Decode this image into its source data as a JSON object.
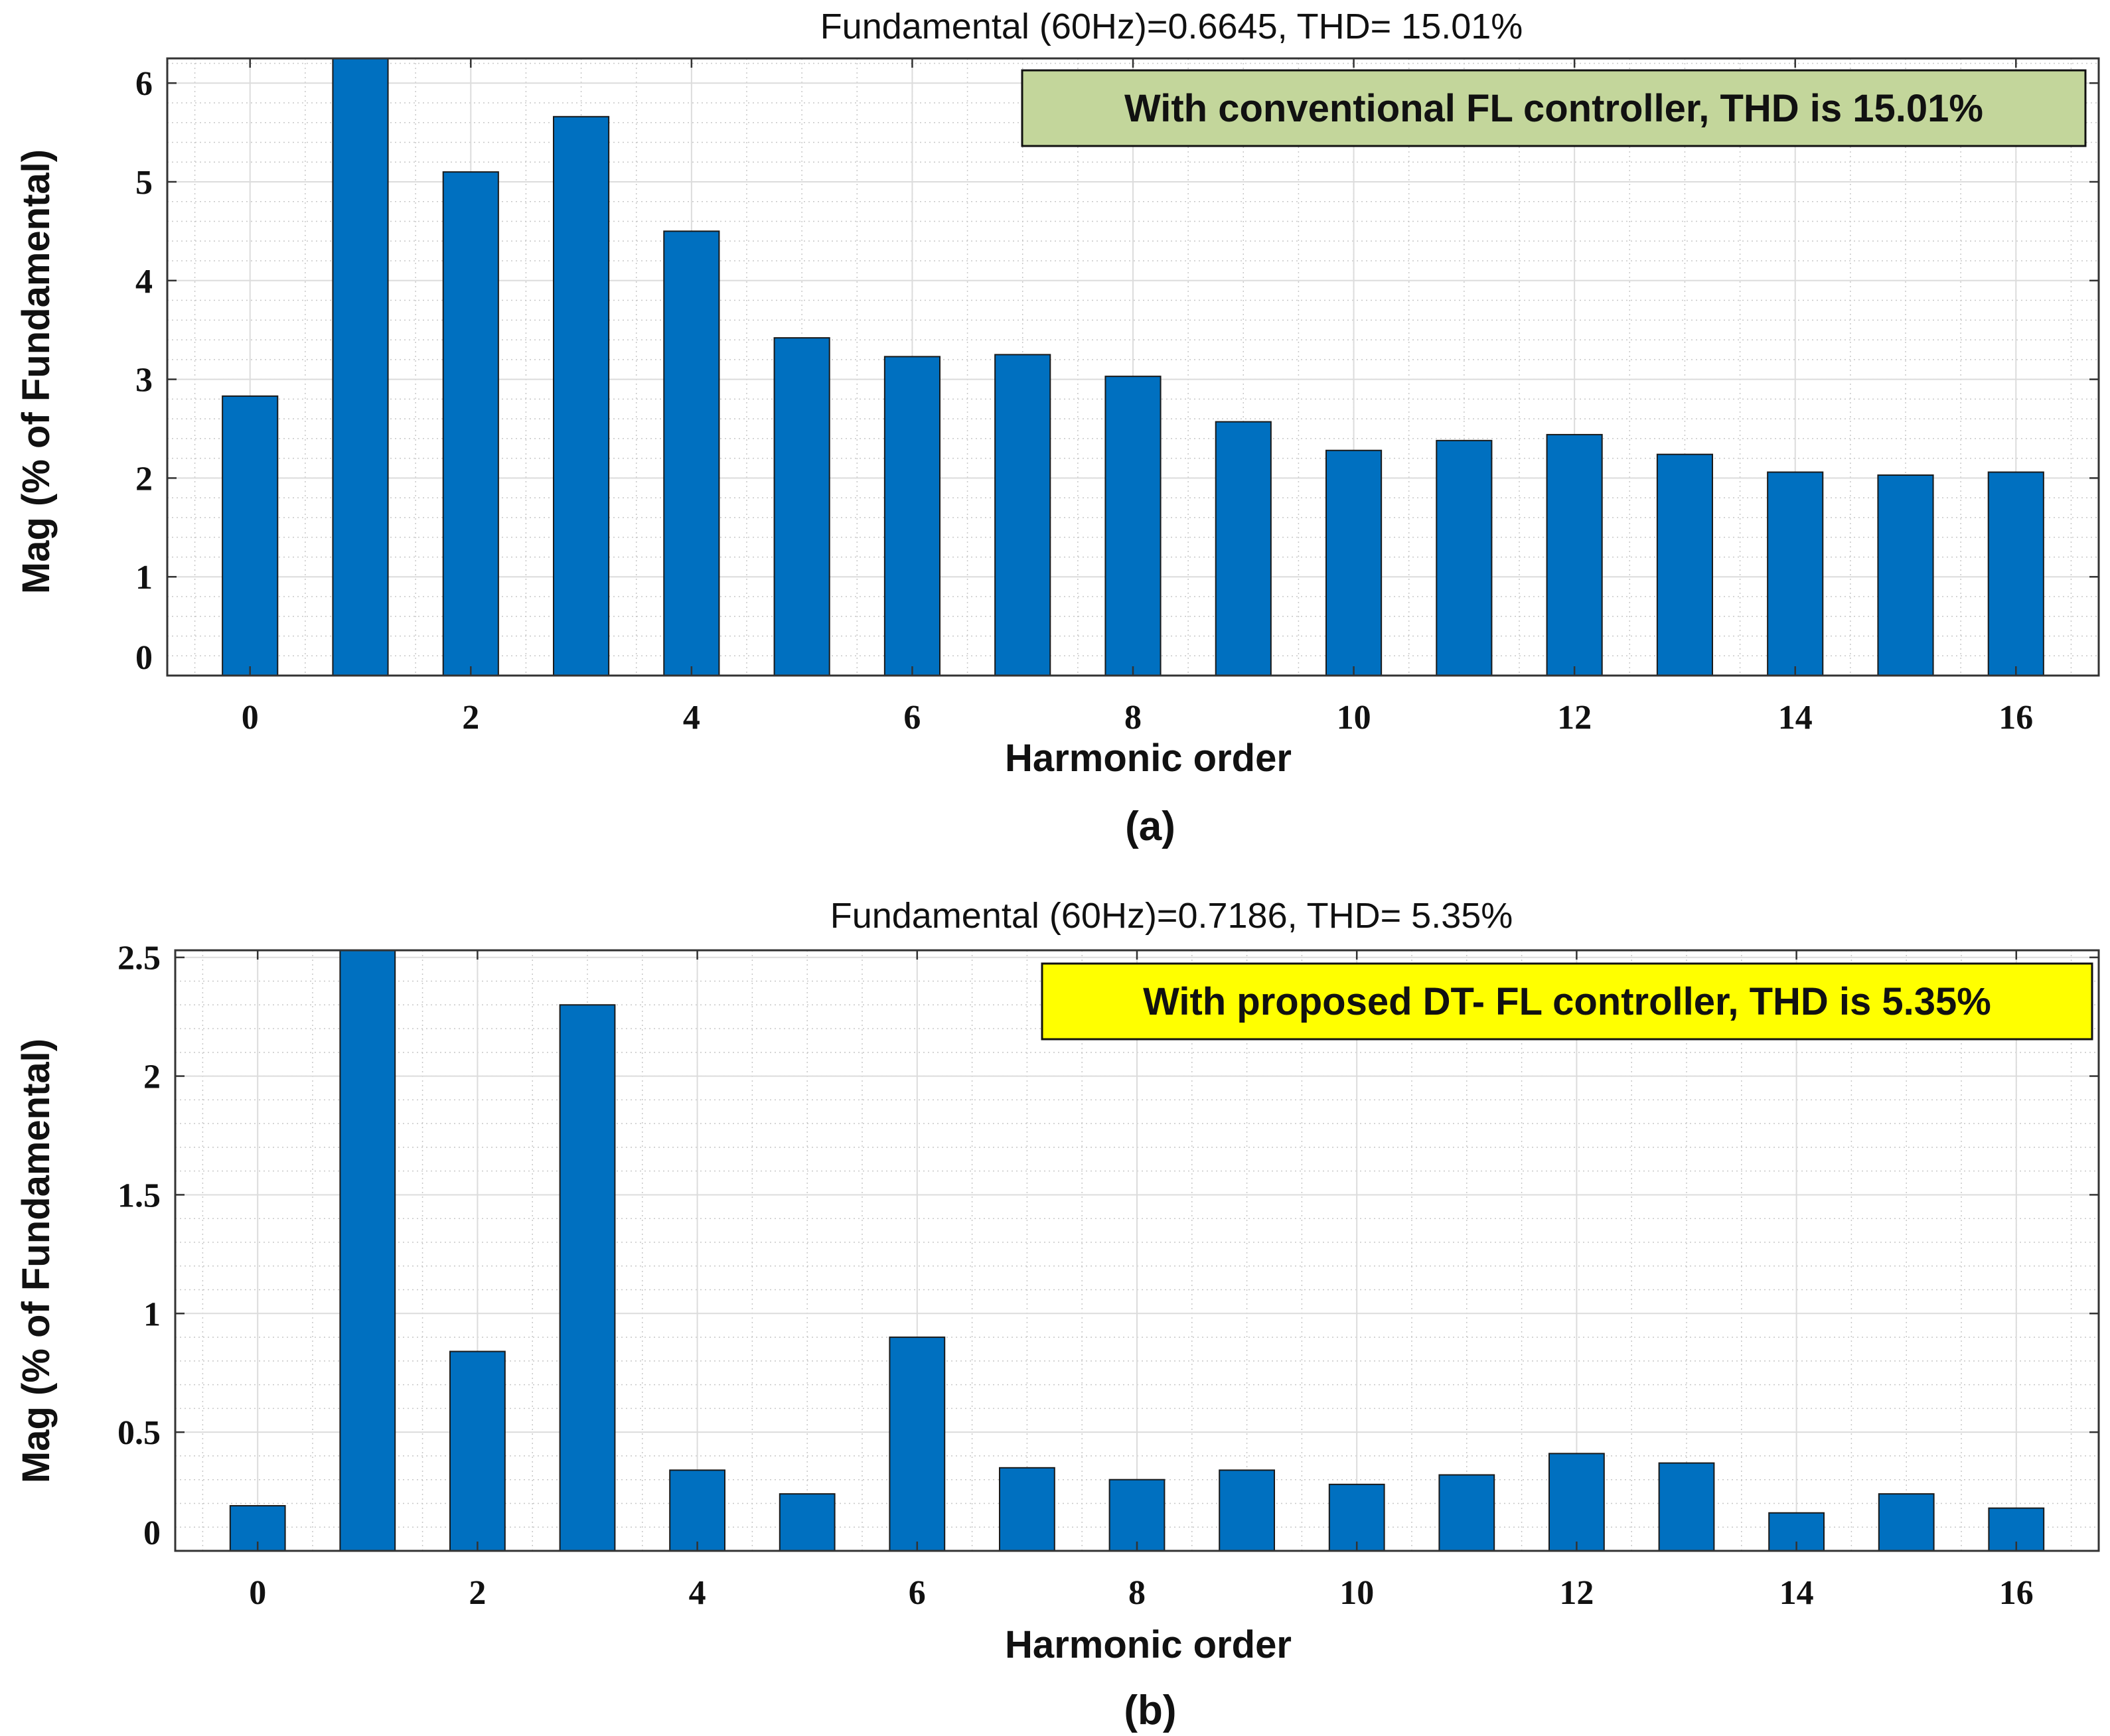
{
  "chart_data": [
    {
      "type": "bar",
      "panel_caption": "(a)",
      "title": "Fundamental (60Hz)=0.6645, THD= 15.01%",
      "xlabel": "Harmonic order",
      "ylabel": "Mag (% of Fundamental)",
      "annotation": "With conventional FL controller, THD is 15.01%",
      "annotation_color": "#c3d69b",
      "bar_color": "#0070c0",
      "categories": [
        0,
        1,
        2,
        3,
        4,
        5,
        6,
        7,
        8,
        9,
        10,
        11,
        12,
        13,
        14,
        15,
        16
      ],
      "values": [
        2.83,
        6.25,
        5.1,
        5.66,
        4.5,
        3.42,
        3.23,
        3.25,
        3.03,
        2.57,
        2.28,
        2.38,
        2.44,
        2.24,
        2.06,
        2.03,
        2.06
      ],
      "x_ticks": [
        0,
        2,
        4,
        6,
        8,
        10,
        12,
        14,
        16
      ],
      "x_tick_labels": [
        "0",
        "2",
        "4",
        "6",
        "8",
        "10",
        "12",
        "14",
        "16"
      ],
      "y_ticks": [
        0,
        1,
        2,
        3,
        4,
        5,
        6
      ],
      "y_tick_labels": [
        "0",
        "1",
        "2",
        "3",
        "4",
        "5",
        "6"
      ],
      "xlim": [
        -0.75,
        16.75
      ],
      "ylim": [
        0,
        6.25
      ],
      "grid": true,
      "legend": "top-right annotation box"
    },
    {
      "type": "bar",
      "panel_caption": "(b)",
      "title": "Fundamental (60Hz)=0.7186, THD= 5.35%",
      "xlabel": "Harmonic order",
      "ylabel": "Mag (% of Fundamental)",
      "annotation": "With proposed DT- FL controller, THD is 5.35%",
      "annotation_color": "#ffff00",
      "bar_color": "#0070c0",
      "categories": [
        0,
        1,
        2,
        3,
        4,
        5,
        6,
        7,
        8,
        9,
        10,
        11,
        12,
        13,
        14,
        15,
        16
      ],
      "values": [
        0.19,
        2.53,
        0.84,
        2.3,
        0.34,
        0.24,
        0.9,
        0.35,
        0.3,
        0.34,
        0.28,
        0.32,
        0.41,
        0.37,
        0.16,
        0.24,
        0.18
      ],
      "x_ticks": [
        0,
        2,
        4,
        6,
        8,
        10,
        12,
        14,
        16
      ],
      "x_tick_labels": [
        "0",
        "2",
        "4",
        "6",
        "8",
        "10",
        "12",
        "14",
        "16"
      ],
      "y_ticks": [
        0,
        0.5,
        1,
        1.5,
        2,
        2.5
      ],
      "y_tick_labels": [
        "0",
        "0.5",
        "1",
        "1.5",
        "2",
        "2.5"
      ],
      "xlim": [
        -0.75,
        16.75
      ],
      "ylim": [
        0,
        2.53
      ],
      "grid": true,
      "legend": "top-right annotation box"
    }
  ]
}
